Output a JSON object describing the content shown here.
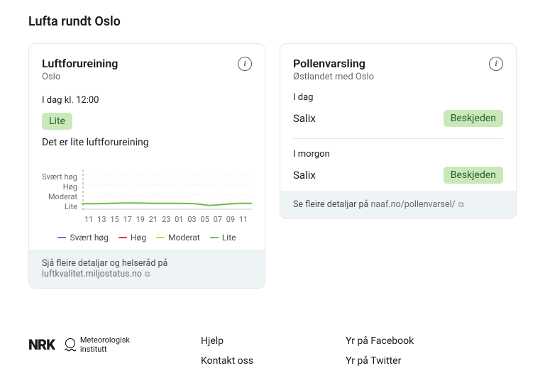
{
  "page": {
    "title": "Lufta rundt Oslo"
  },
  "air": {
    "title": "Luftforureining",
    "subtitle": "Oslo",
    "time_label": "I dag kl. 12:00",
    "level_label": "Lite",
    "level_bg": "#c9e9b9",
    "level_text_color": "#2d5a2d",
    "summary": "Det er lite luftforureining",
    "chart": {
      "type": "line",
      "y_labels": [
        "Svært høg",
        "Høg",
        "Moderat",
        "Lite"
      ],
      "x_labels": [
        "11",
        "13",
        "15",
        "17",
        "19",
        "21",
        "23",
        "01",
        "03",
        "05",
        "07",
        "09",
        "11"
      ],
      "line_color": "#6bbf4a",
      "grid_color": "#e0e0e0",
      "values": [
        0.15,
        0.15,
        0.16,
        0.17,
        0.17,
        0.16,
        0.16,
        0.16,
        0.15,
        0.1,
        0.13,
        0.16,
        0.16
      ],
      "ylim": [
        0,
        1
      ]
    },
    "legend": [
      {
        "label": "Svært høg",
        "color": "#9b59b6"
      },
      {
        "label": "Høg",
        "color": "#d9343a"
      },
      {
        "label": "Moderat",
        "color": "#e6c544"
      },
      {
        "label": "Lite",
        "color": "#6bbf4a"
      }
    ],
    "footer_text": "Sjå fleire detaljar og helseråd på",
    "footer_link_text": "luftkvalitet.miljostatus.no"
  },
  "pollen": {
    "title": "Pollenvarsling",
    "subtitle": "Østlandet med Oslo",
    "today_label": "I dag",
    "tomorrow_label": "I morgon",
    "today": [
      {
        "name": "Salix",
        "level": "Beskjeden",
        "bg": "#c9e9b9",
        "color": "#2d5a2d"
      }
    ],
    "tomorrow": [
      {
        "name": "Salix",
        "level": "Beskjeden",
        "bg": "#c9e9b9",
        "color": "#2d5a2d"
      }
    ],
    "footer_text": "Se fleire detaljar på",
    "footer_link_text": "naaf.no/pollenvarsel/"
  },
  "footer": {
    "nrk": "NRK",
    "met_line1": "Meteorologisk",
    "met_line2": "institutt",
    "col1": [
      "Hjelp",
      "Kontakt oss"
    ],
    "col2": [
      "Yr på Facebook",
      "Yr på Twitter"
    ]
  }
}
